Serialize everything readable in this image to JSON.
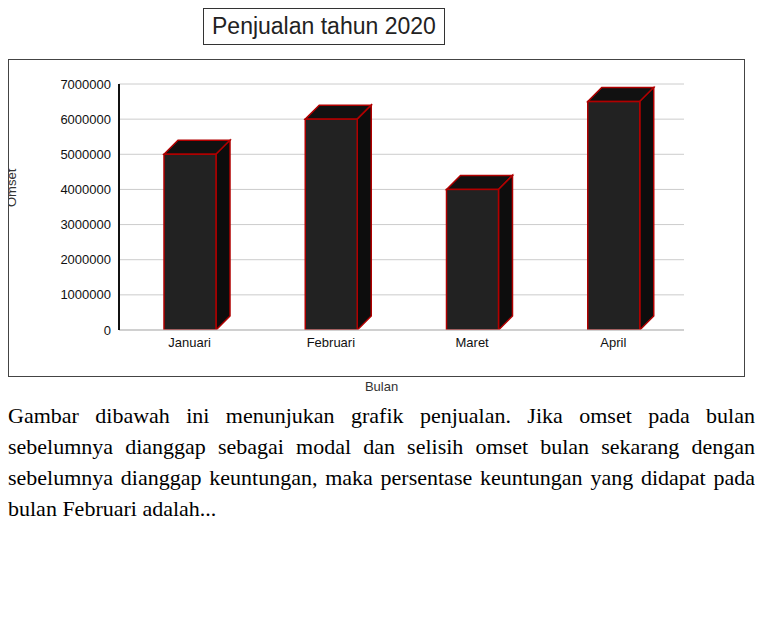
{
  "chart_data": {
    "type": "bar",
    "title": "Penjualan tahun 2020",
    "x_label": "Bulan",
    "y_label": "Omset",
    "categories": [
      "Januari",
      "Februari",
      "Maret",
      "April"
    ],
    "values": [
      5000000,
      6000000,
      4000000,
      6500000
    ],
    "color": "#222222",
    "ylim": [
      0,
      7000000
    ],
    "yticks": [
      0,
      1000000,
      2000000,
      3000000,
      4000000,
      5000000,
      6000000,
      7000000
    ],
    "grid": true,
    "annotation": "Gambar dibawah ini menunjukan grafik penjualan. Jika omset pada bulan sebelumnya dianggap sebagai modal dan selisih omset bulan sekarang dengan sebelumnya dianggap keuntungan, maka persentase keuntungan yang didapat pada bulan Februari adalah..."
  }
}
